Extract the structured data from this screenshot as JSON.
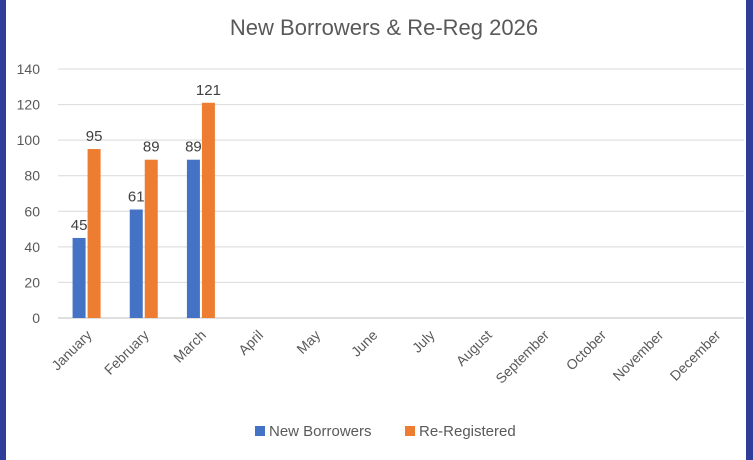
{
  "chart_data": {
    "type": "bar",
    "title": "New Borrowers & Re-Reg 2026",
    "categories": [
      "January",
      "February",
      "March",
      "April",
      "May",
      "June",
      "July",
      "August",
      "September",
      "October",
      "November",
      "December"
    ],
    "series": [
      {
        "name": "New Borrowers",
        "color": "#4472c4",
        "values": [
          45,
          61,
          89,
          null,
          null,
          null,
          null,
          null,
          null,
          null,
          null,
          null
        ]
      },
      {
        "name": "Re-Registered",
        "color": "#ed7d31",
        "values": [
          95,
          89,
          121,
          null,
          null,
          null,
          null,
          null,
          null,
          null,
          null,
          null
        ]
      }
    ],
    "ylim": [
      0,
      140
    ],
    "yticks": [
      "0",
      "20",
      "40",
      "60",
      "80",
      "100",
      "120",
      "140"
    ],
    "grid": true,
    "legend_position": "bottom",
    "data_labels": true
  }
}
